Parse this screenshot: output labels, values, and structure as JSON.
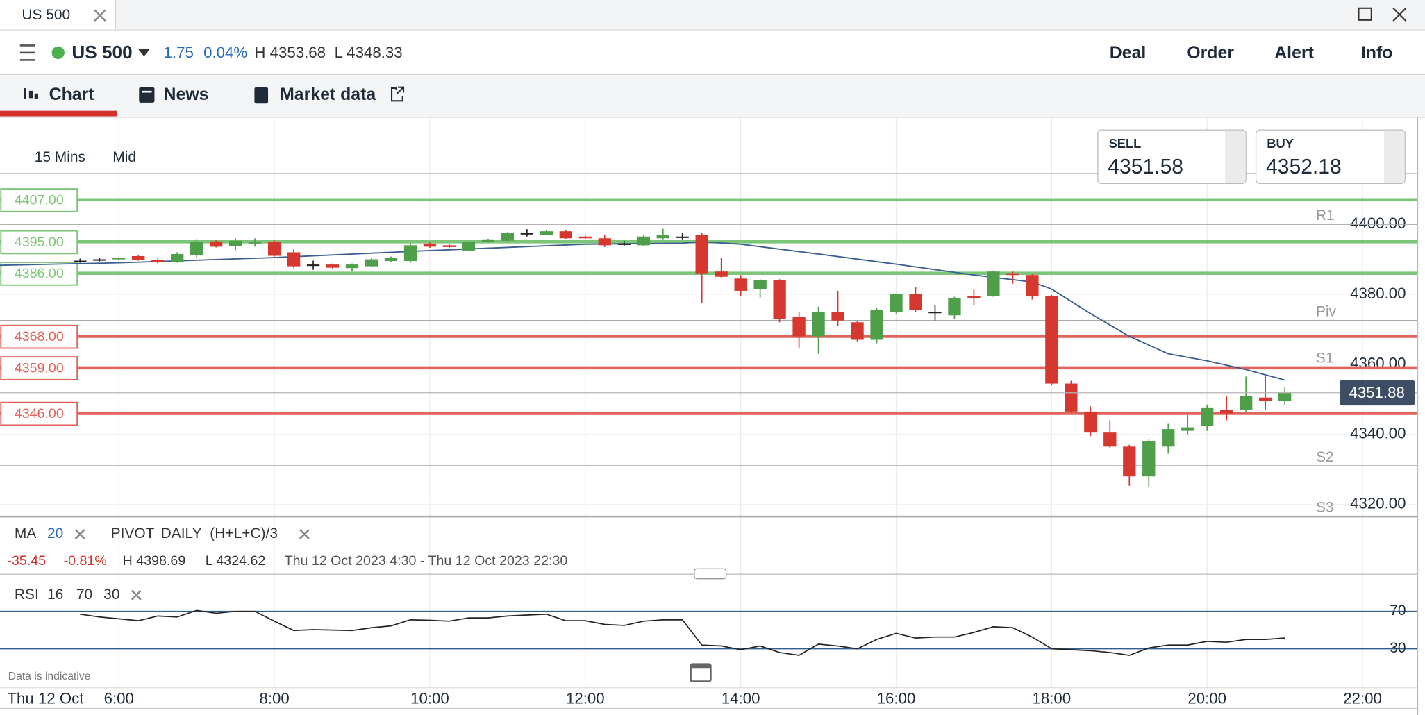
{
  "window": {
    "tab_title": "US 500"
  },
  "header": {
    "instrument": "US 500",
    "change": "1.75",
    "change_pct": "0.04%",
    "high": "H 4353.68",
    "low": "L 4348.33",
    "actions": [
      "Deal",
      "Order",
      "Alert",
      "Info"
    ]
  },
  "tabs": [
    "Chart",
    "News",
    "Market data"
  ],
  "toolbar": {
    "interval": "15 Mins",
    "price_type": "Mid"
  },
  "quote": {
    "sell_label": "SELL",
    "sell": "4351.58",
    "buy_label": "BUY",
    "buy": "4352.18"
  },
  "indicators": {
    "ma_label": "MA",
    "ma_period": "20",
    "pivot_label": "PIVOT",
    "pivot_period": "DAILY",
    "pivot_formula": "(H+L+C)/3"
  },
  "summary": {
    "change": "-35.45",
    "change_pct": "-0.81%",
    "high": "H 4398.69",
    "low": "L 4324.62",
    "range": "Thu 12 Oct 2023 4:30 - Thu 12 Oct 2023 22:30"
  },
  "rsi_header": {
    "label": "RSI",
    "period": "16",
    "upper": "70",
    "lower": "30"
  },
  "footer": {
    "disclaimer": "Data is indicative",
    "date": "Thu 12 Oct"
  },
  "chart_data": {
    "type": "candlestick",
    "up_color": "#4f9f4a",
    "down_color": "#d6372e",
    "flat_color": "#222222",
    "xlim": [
      4.47,
      22.71
    ],
    "xticks": [
      {
        "value": 6,
        "label": "6:00"
      },
      {
        "value": 8,
        "label": "8:00"
      },
      {
        "value": 10,
        "label": "10:00"
      },
      {
        "value": 12,
        "label": "12:00"
      },
      {
        "value": 14,
        "label": "14:00"
      },
      {
        "value": 16,
        "label": "16:00"
      },
      {
        "value": 18,
        "label": "18:00"
      },
      {
        "value": 20,
        "label": "20:00"
      },
      {
        "value": 22,
        "label": "22:00"
      }
    ],
    "ylim": [
      4316.4,
      4414.5
    ],
    "yticks": [
      {
        "value": 4320,
        "label": "4320.00"
      },
      {
        "value": 4340,
        "label": "4340.00"
      },
      {
        "value": 4360,
        "label": "4360.00"
      },
      {
        "value": 4380,
        "label": "4380.00"
      },
      {
        "value": 4400,
        "label": "4400.00"
      }
    ],
    "grid": true,
    "x": [
      5.5,
      5.75,
      6,
      6.25,
      6.5,
      6.75,
      7,
      7.25,
      7.5,
      7.75,
      8,
      8.25,
      8.5,
      8.75,
      9,
      9.25,
      9.5,
      9.75,
      10,
      10.25,
      10.5,
      10.75,
      11,
      11.25,
      11.5,
      11.75,
      12,
      12.25,
      12.5,
      12.75,
      13,
      13.25,
      13.5,
      13.75,
      14,
      14.25,
      14.5,
      14.75,
      15,
      15.25,
      15.5,
      15.75,
      16,
      16.25,
      16.5,
      16.75,
      17,
      17.25,
      17.5,
      17.75,
      18,
      18.25,
      18.5,
      18.75,
      19,
      19.25,
      19.5,
      19.75,
      20,
      20.25,
      20.5,
      20.75,
      21
    ],
    "open": [
      4389.6,
      4390,
      4390,
      4390.9,
      4389.9,
      4389.3,
      4391.2,
      4395.1,
      4393.8,
      4394.5,
      4395,
      4392,
      4388.5,
      4388.5,
      4387.5,
      4388,
      4389.5,
      4389.5,
      4394.5,
      4394,
      4392.5,
      4395,
      4395.3,
      4397.5,
      4397,
      4398,
      4396.5,
      4396,
      4394.5,
      4394,
      4396,
      4396.5,
      4397,
      4386.5,
      4384.5,
      4381.5,
      4384,
      4373.5,
      4368,
      4375,
      4372,
      4367,
      4375,
      4380,
      4375,
      4374,
      4379.5,
      4379.5,
      4386,
      4385.5,
      4379.5,
      4354.5,
      4346.5,
      4340.5,
      4336.5,
      4328,
      4336.5,
      4341,
      4342.5,
      4347,
      4347,
      4350.5,
      4349.5
    ],
    "high": [
      4390.2,
      4390.5,
      4390.6,
      4391.1,
      4390.2,
      4392,
      4395.6,
      4395.4,
      4396,
      4396,
      4395.4,
      4393,
      4389.6,
      4388.8,
      4388.8,
      4390.3,
      4390.8,
      4394.6,
      4394.8,
      4394.3,
      4395.2,
      4395.8,
      4397.8,
      4398.6,
      4398.3,
      4398.3,
      4396.8,
      4397,
      4395.3,
      4396.8,
      4398.7,
      4397.5,
      4397.5,
      4390.5,
      4385.5,
      4384.3,
      4384.3,
      4375,
      4376.5,
      4381,
      4372.5,
      4376,
      4380.2,
      4382,
      4377,
      4379.3,
      4381.5,
      4386.8,
      4386.5,
      4385.8,
      4379.8,
      4355.3,
      4348,
      4344,
      4337,
      4338.5,
      4343,
      4345.5,
      4348.5,
      4351,
      4356.5,
      4356.5,
      4353.5
    ],
    "low": [
      4389,
      4389.4,
      4389.6,
      4389.6,
      4388.8,
      4389,
      4390.6,
      4393.4,
      4392.6,
      4393.6,
      4390.8,
      4387.5,
      4387,
      4387.3,
      4386.5,
      4387.8,
      4389.3,
      4389,
      4393.3,
      4393.2,
      4392.3,
      4394.8,
      4395,
      4396.5,
      4396.8,
      4395.8,
      4395.7,
      4393.5,
      4393.8,
      4393.8,
      4395.5,
      4395.5,
      4377.5,
      4384.8,
      4379.5,
      4379,
      4372,
      4364.5,
      4363,
      4371,
      4366.5,
      4366,
      4374.5,
      4375,
      4372.5,
      4373,
      4377,
      4379.3,
      4383,
      4378.5,
      4354,
      4346.2,
      4339.5,
      4336.2,
      4325.3,
      4325,
      4334.5,
      4340,
      4341,
      4344,
      4346.5,
      4347,
      4348.5
    ],
    "close": [
      4389.6,
      4390,
      4390.4,
      4389.9,
      4389.1,
      4391.5,
      4395,
      4393.6,
      4395.3,
      4395,
      4391,
      4388,
      4388.5,
      4387.6,
      4388.5,
      4390,
      4390.5,
      4394,
      4393.6,
      4393.5,
      4395,
      4395.5,
      4397.5,
      4397.5,
      4398,
      4396,
      4396,
      4394,
      4394.5,
      4396.5,
      4397,
      4396.5,
      4386,
      4385,
      4381,
      4384,
      4373,
      4368,
      4375,
      4372.5,
      4367,
      4375.5,
      4380,
      4375.5,
      4375,
      4379,
      4379,
      4386.5,
      4385.5,
      4379.5,
      4354.5,
      4346.5,
      4340.5,
      4336.5,
      4328,
      4338,
      4341.5,
      4342,
      4347.5,
      4346,
      4351,
      4349.5,
      4352
    ],
    "ma": {
      "color": "#3b5d8f",
      "x": [
        4.47,
        6,
        8,
        10,
        12,
        13.25,
        13.5,
        14,
        15,
        16,
        17,
        17.75,
        18,
        18.5,
        19,
        19.5,
        20,
        20.5,
        21
      ],
      "values": [
        4388.3,
        4389,
        4390.5,
        4392.5,
        4394.3,
        4394.6,
        4395,
        4394.3,
        4391.5,
        4388.6,
        4385.5,
        4383.5,
        4381.5,
        4374.5,
        4368,
        4363,
        4361,
        4358.5,
        4355.5
      ]
    },
    "pivots": [
      {
        "name": "R1",
        "value": 4400
      },
      {
        "name": "Piv",
        "value": 4372.5
      },
      {
        "name": "S1",
        "value": 4359.2
      },
      {
        "name": "S2",
        "value": 4331
      },
      {
        "name": "S3",
        "value": 4316.6
      }
    ],
    "levels": [
      {
        "value": 4407,
        "label": "4407.00",
        "color": "#7dc679"
      },
      {
        "value": 4395,
        "label": "4395.00",
        "color": "#7dc679"
      },
      {
        "value": 4386,
        "label": "4386.00",
        "color": "#7dc679"
      },
      {
        "value": 4368,
        "label": "4368.00",
        "color": "#e0645c"
      },
      {
        "value": 4359,
        "label": "4359.00",
        "color": "#e0645c"
      },
      {
        "value": 4346,
        "label": "4346.00",
        "color": "#e0645c"
      }
    ],
    "current": {
      "value": 4351.88,
      "label": "4351.88",
      "color": "#3d4d63"
    },
    "rsi": {
      "color": "#222222",
      "ylim": [
        0,
        100
      ],
      "yticks": [
        30,
        70
      ],
      "line_color": "#2f5d8c",
      "values": [
        67,
        64,
        62,
        60,
        65,
        64,
        71,
        68,
        70,
        70,
        59.5,
        49.5,
        50.5,
        50,
        49.5,
        52.5,
        54.5,
        61,
        60.5,
        59.5,
        63,
        63,
        65,
        66,
        67,
        60,
        60,
        56,
        55,
        59.5,
        61,
        61,
        34,
        33,
        29,
        33,
        26,
        23,
        35,
        33,
        30,
        40,
        46.5,
        41.5,
        42.5,
        42.5,
        47.5,
        53.5,
        52.5,
        42.5,
        30,
        29,
        28,
        26,
        23,
        31,
        34,
        34,
        38,
        37,
        40,
        40,
        41.5
      ]
    }
  }
}
